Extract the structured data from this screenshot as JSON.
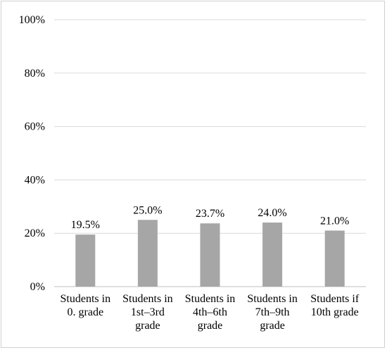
{
  "chart_data": {
    "type": "bar",
    "categories": [
      [
        "Students in",
        "0. grade"
      ],
      [
        "Students in",
        "1st–3rd",
        "grade"
      ],
      [
        "Students in",
        "4th–6th",
        "grade"
      ],
      [
        "Students in",
        "7th–9th",
        "grade"
      ],
      [
        "Students if",
        "10th grade"
      ]
    ],
    "values": [
      19.5,
      25.0,
      23.7,
      24.0,
      21.0
    ],
    "data_labels": [
      "19.5%",
      "25.0%",
      "23.7%",
      "24.0%",
      "21.0%"
    ],
    "ylim": [
      0,
      100
    ],
    "yticks": [
      0,
      20,
      40,
      60,
      80,
      100
    ],
    "ytick_labels": [
      "0%",
      "20%",
      "40%",
      "60%",
      "80%",
      "100%"
    ],
    "title": "",
    "xlabel": "",
    "ylabel": "",
    "grid": true,
    "legend": "none",
    "bar_color": "#a6a6a6",
    "grid_color": "#d9d9d9",
    "axis_color": "#bfbfbf"
  }
}
